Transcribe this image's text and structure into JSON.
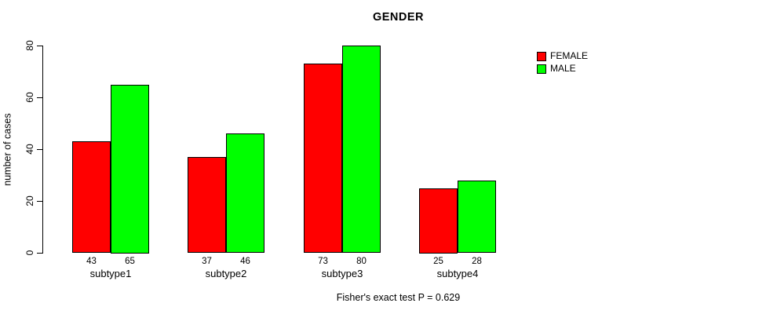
{
  "title": "GENDER",
  "chart_data": {
    "type": "bar",
    "categories": [
      "subtype1",
      "subtype2",
      "subtype3",
      "subtype4"
    ],
    "series": [
      {
        "name": "FEMALE",
        "color": "#ff0000",
        "values": [
          43,
          37,
          73,
          25
        ]
      },
      {
        "name": "MALE",
        "color": "#00ff00",
        "values": [
          65,
          46,
          80,
          28
        ]
      }
    ],
    "ylabel": "number of cases",
    "xlabel": "",
    "ylim": [
      0,
      80
    ],
    "yticks": [
      0,
      20,
      40,
      60,
      80
    ],
    "bar_value_labels": true,
    "grid": "off",
    "legend_position": "right",
    "annotation": "Fisher's exact test P = 0.629",
    "background": "#ffffff"
  }
}
